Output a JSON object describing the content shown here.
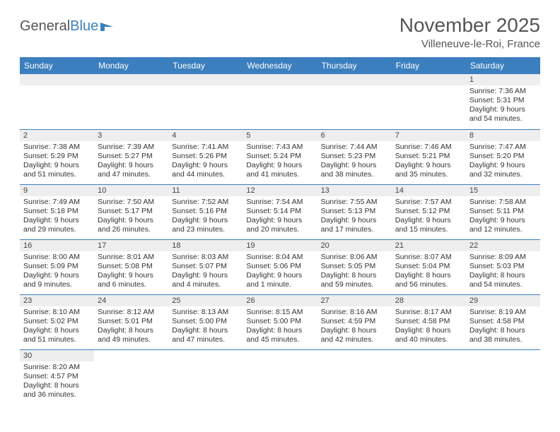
{
  "logo": {
    "part1": "General",
    "part2": "Blue"
  },
  "title": "November 2025",
  "location": "Villeneuve-le-Roi, France",
  "colors": {
    "header_bg": "#3b7fbf",
    "header_fg": "#ffffff",
    "daynum_bg": "#eeeeee",
    "row_border": "#3b7fbf"
  },
  "weekdays": [
    "Sunday",
    "Monday",
    "Tuesday",
    "Wednesday",
    "Thursday",
    "Friday",
    "Saturday"
  ],
  "weeks": [
    [
      null,
      null,
      null,
      null,
      null,
      null,
      {
        "n": "1",
        "sr": "Sunrise: 7:36 AM",
        "ss": "Sunset: 5:31 PM",
        "dl": "Daylight: 9 hours and 54 minutes."
      }
    ],
    [
      {
        "n": "2",
        "sr": "Sunrise: 7:38 AM",
        "ss": "Sunset: 5:29 PM",
        "dl": "Daylight: 9 hours and 51 minutes."
      },
      {
        "n": "3",
        "sr": "Sunrise: 7:39 AM",
        "ss": "Sunset: 5:27 PM",
        "dl": "Daylight: 9 hours and 47 minutes."
      },
      {
        "n": "4",
        "sr": "Sunrise: 7:41 AM",
        "ss": "Sunset: 5:26 PM",
        "dl": "Daylight: 9 hours and 44 minutes."
      },
      {
        "n": "5",
        "sr": "Sunrise: 7:43 AM",
        "ss": "Sunset: 5:24 PM",
        "dl": "Daylight: 9 hours and 41 minutes."
      },
      {
        "n": "6",
        "sr": "Sunrise: 7:44 AM",
        "ss": "Sunset: 5:23 PM",
        "dl": "Daylight: 9 hours and 38 minutes."
      },
      {
        "n": "7",
        "sr": "Sunrise: 7:46 AM",
        "ss": "Sunset: 5:21 PM",
        "dl": "Daylight: 9 hours and 35 minutes."
      },
      {
        "n": "8",
        "sr": "Sunrise: 7:47 AM",
        "ss": "Sunset: 5:20 PM",
        "dl": "Daylight: 9 hours and 32 minutes."
      }
    ],
    [
      {
        "n": "9",
        "sr": "Sunrise: 7:49 AM",
        "ss": "Sunset: 5:18 PM",
        "dl": "Daylight: 9 hours and 29 minutes."
      },
      {
        "n": "10",
        "sr": "Sunrise: 7:50 AM",
        "ss": "Sunset: 5:17 PM",
        "dl": "Daylight: 9 hours and 26 minutes."
      },
      {
        "n": "11",
        "sr": "Sunrise: 7:52 AM",
        "ss": "Sunset: 5:16 PM",
        "dl": "Daylight: 9 hours and 23 minutes."
      },
      {
        "n": "12",
        "sr": "Sunrise: 7:54 AM",
        "ss": "Sunset: 5:14 PM",
        "dl": "Daylight: 9 hours and 20 minutes."
      },
      {
        "n": "13",
        "sr": "Sunrise: 7:55 AM",
        "ss": "Sunset: 5:13 PM",
        "dl": "Daylight: 9 hours and 17 minutes."
      },
      {
        "n": "14",
        "sr": "Sunrise: 7:57 AM",
        "ss": "Sunset: 5:12 PM",
        "dl": "Daylight: 9 hours and 15 minutes."
      },
      {
        "n": "15",
        "sr": "Sunrise: 7:58 AM",
        "ss": "Sunset: 5:11 PM",
        "dl": "Daylight: 9 hours and 12 minutes."
      }
    ],
    [
      {
        "n": "16",
        "sr": "Sunrise: 8:00 AM",
        "ss": "Sunset: 5:09 PM",
        "dl": "Daylight: 9 hours and 9 minutes."
      },
      {
        "n": "17",
        "sr": "Sunrise: 8:01 AM",
        "ss": "Sunset: 5:08 PM",
        "dl": "Daylight: 9 hours and 6 minutes."
      },
      {
        "n": "18",
        "sr": "Sunrise: 8:03 AM",
        "ss": "Sunset: 5:07 PM",
        "dl": "Daylight: 9 hours and 4 minutes."
      },
      {
        "n": "19",
        "sr": "Sunrise: 8:04 AM",
        "ss": "Sunset: 5:06 PM",
        "dl": "Daylight: 9 hours and 1 minute."
      },
      {
        "n": "20",
        "sr": "Sunrise: 8:06 AM",
        "ss": "Sunset: 5:05 PM",
        "dl": "Daylight: 8 hours and 59 minutes."
      },
      {
        "n": "21",
        "sr": "Sunrise: 8:07 AM",
        "ss": "Sunset: 5:04 PM",
        "dl": "Daylight: 8 hours and 56 minutes."
      },
      {
        "n": "22",
        "sr": "Sunrise: 8:09 AM",
        "ss": "Sunset: 5:03 PM",
        "dl": "Daylight: 8 hours and 54 minutes."
      }
    ],
    [
      {
        "n": "23",
        "sr": "Sunrise: 8:10 AM",
        "ss": "Sunset: 5:02 PM",
        "dl": "Daylight: 8 hours and 51 minutes."
      },
      {
        "n": "24",
        "sr": "Sunrise: 8:12 AM",
        "ss": "Sunset: 5:01 PM",
        "dl": "Daylight: 8 hours and 49 minutes."
      },
      {
        "n": "25",
        "sr": "Sunrise: 8:13 AM",
        "ss": "Sunset: 5:00 PM",
        "dl": "Daylight: 8 hours and 47 minutes."
      },
      {
        "n": "26",
        "sr": "Sunrise: 8:15 AM",
        "ss": "Sunset: 5:00 PM",
        "dl": "Daylight: 8 hours and 45 minutes."
      },
      {
        "n": "27",
        "sr": "Sunrise: 8:16 AM",
        "ss": "Sunset: 4:59 PM",
        "dl": "Daylight: 8 hours and 42 minutes."
      },
      {
        "n": "28",
        "sr": "Sunrise: 8:17 AM",
        "ss": "Sunset: 4:58 PM",
        "dl": "Daylight: 8 hours and 40 minutes."
      },
      {
        "n": "29",
        "sr": "Sunrise: 8:19 AM",
        "ss": "Sunset: 4:58 PM",
        "dl": "Daylight: 8 hours and 38 minutes."
      }
    ],
    [
      {
        "n": "30",
        "sr": "Sunrise: 8:20 AM",
        "ss": "Sunset: 4:57 PM",
        "dl": "Daylight: 8 hours and 36 minutes."
      },
      null,
      null,
      null,
      null,
      null,
      null
    ]
  ]
}
